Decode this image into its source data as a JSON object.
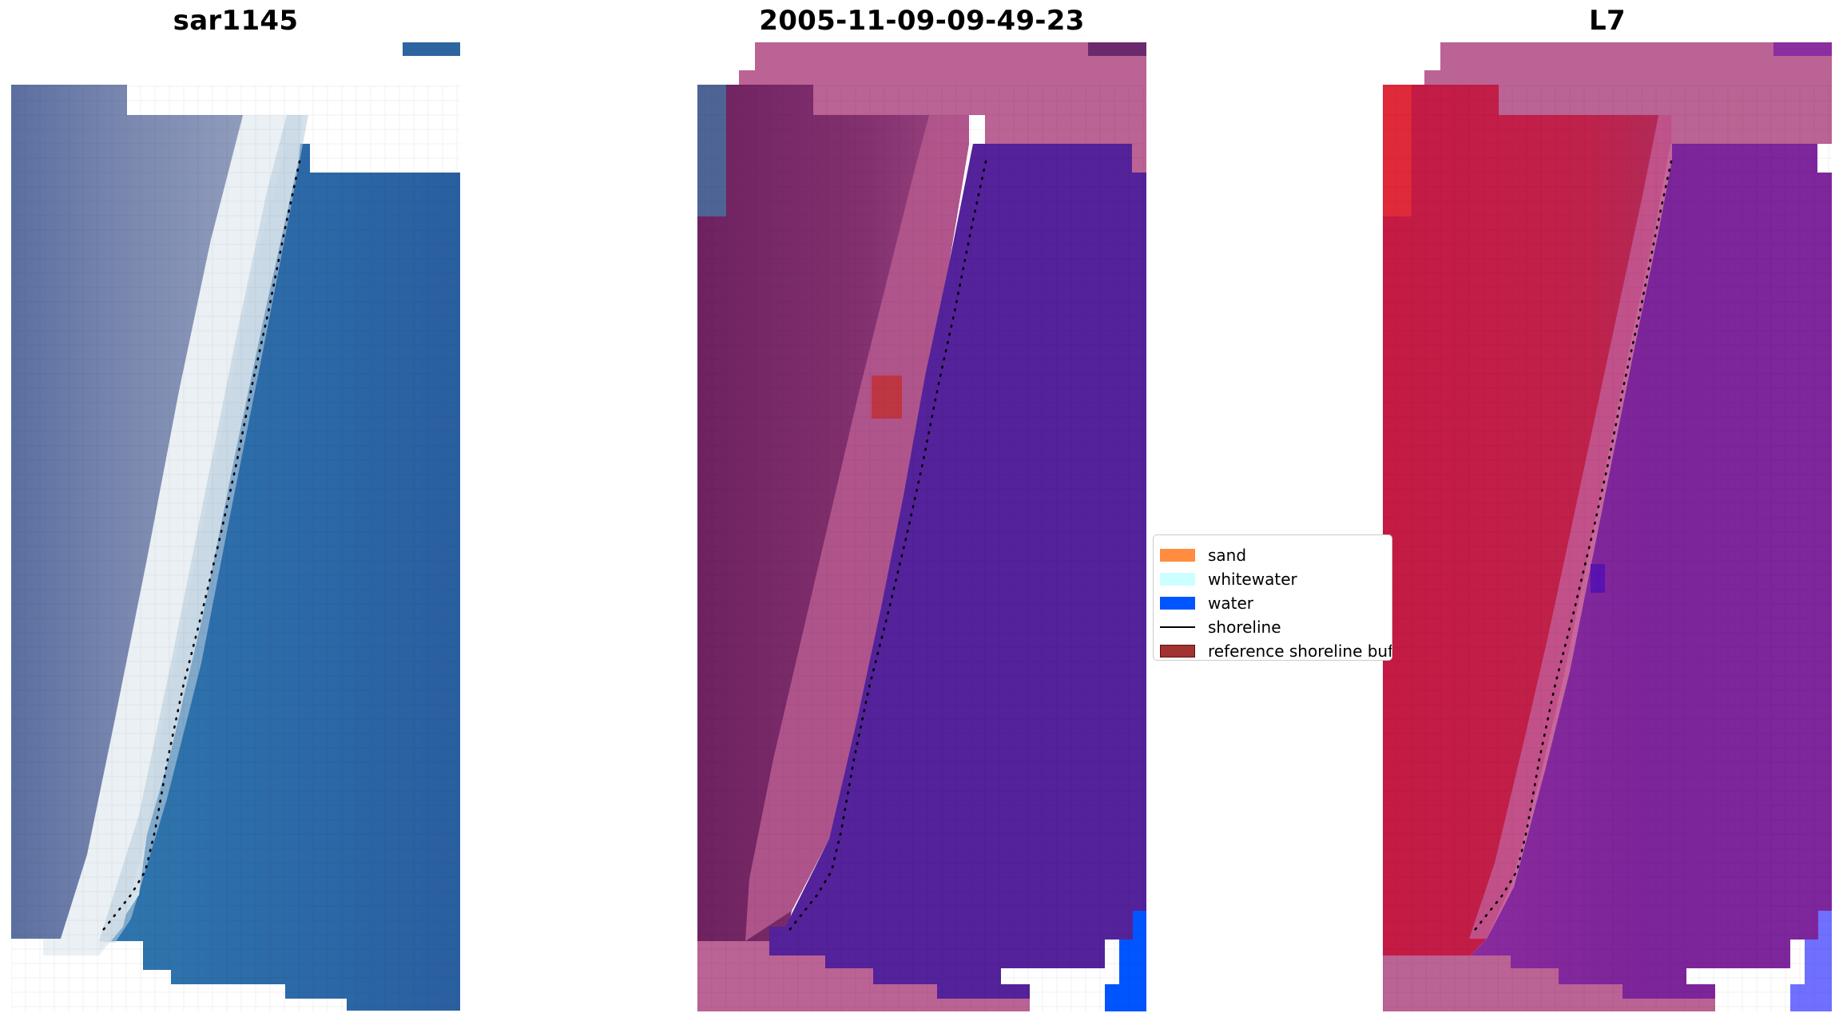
{
  "panels": [
    {
      "title": "sar1145",
      "kind": "rgb"
    },
    {
      "title": "2005-11-09-09-49-23",
      "kind": "classified"
    },
    {
      "title": "L7",
      "kind": "mndwi"
    }
  ],
  "legend": {
    "items": [
      {
        "label": "sand",
        "color": "#ff8c3f",
        "kind": "patch"
      },
      {
        "label": "whitewater",
        "color": "#ccffff",
        "kind": "patch"
      },
      {
        "label": "water",
        "color": "#0055ff",
        "kind": "patch"
      },
      {
        "label": "shoreline",
        "color": "#000000",
        "kind": "line"
      },
      {
        "label": "reference shoreline buffer",
        "color": "#a33232",
        "kind": "patch"
      }
    ]
  },
  "colors": {
    "ocean_blue": "#2a6aa6",
    "land_grey": "#6f7fa8",
    "whitewater_white": "#eef2f4",
    "class_water_purple": "#54229a",
    "class_land_magenta": "#7a2666",
    "class_nodata_pink": "#ba6394",
    "mndwi_red": "#bf1443",
    "mndwi_purple": "#7b249a",
    "bright_water_blue": "#0055ff",
    "light_water_lavender": "#7070ff"
  }
}
